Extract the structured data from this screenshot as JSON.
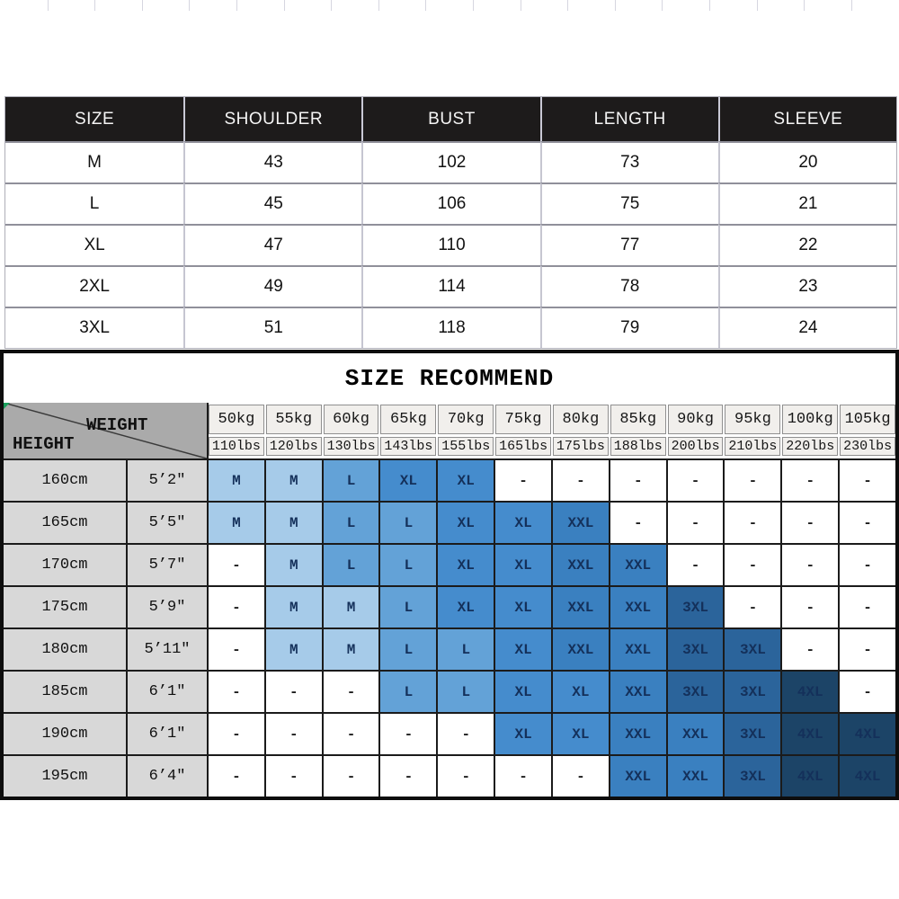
{
  "size_table": {
    "headers": [
      "SIZE",
      "SHOULDER",
      "BUST",
      "LENGTH",
      "SLEEVE"
    ],
    "rows": [
      [
        "M",
        "43",
        "102",
        "73",
        "20"
      ],
      [
        "L",
        "45",
        "106",
        "75",
        "21"
      ],
      [
        "XL",
        "47",
        "110",
        "77",
        "22"
      ],
      [
        "2XL",
        "49",
        "114",
        "78",
        "23"
      ],
      [
        "3XL",
        "51",
        "118",
        "79",
        "24"
      ]
    ]
  },
  "recommend": {
    "title": "SIZE RECOMMEND",
    "corner": {
      "weight_label": "WEIGHT",
      "height_label": "HEIGHT"
    },
    "weights": [
      {
        "kg": "50kg",
        "lbs": "110lbs"
      },
      {
        "kg": "55kg",
        "lbs": "120lbs"
      },
      {
        "kg": "60kg",
        "lbs": "130lbs"
      },
      {
        "kg": "65kg",
        "lbs": "143lbs"
      },
      {
        "kg": "70kg",
        "lbs": "155lbs"
      },
      {
        "kg": "75kg",
        "lbs": "165lbs"
      },
      {
        "kg": "80kg",
        "lbs": "175lbs"
      },
      {
        "kg": "85kg",
        "lbs": "188lbs"
      },
      {
        "kg": "90kg",
        "lbs": "200lbs"
      },
      {
        "kg": "95kg",
        "lbs": "210lbs"
      },
      {
        "kg": "100kg",
        "lbs": "220lbs"
      },
      {
        "kg": "105kg",
        "lbs": "230lbs"
      }
    ],
    "rows": [
      {
        "cm": "160cm",
        "ft": "5’2″",
        "cells": [
          "M",
          "M",
          "L",
          "XL",
          "XL",
          "-",
          "-",
          "-",
          "-",
          "-",
          "-",
          "-"
        ]
      },
      {
        "cm": "165cm",
        "ft": "5’5″",
        "cells": [
          "M",
          "M",
          "L",
          "L",
          "XL",
          "XL",
          "XXL",
          "-",
          "-",
          "-",
          "-",
          "-"
        ]
      },
      {
        "cm": "170cm",
        "ft": "5’7″",
        "cells": [
          "-",
          "M",
          "L",
          "L",
          "XL",
          "XL",
          "XXL",
          "XXL",
          "-",
          "-",
          "-",
          "-"
        ]
      },
      {
        "cm": "175cm",
        "ft": "5’9″",
        "cells": [
          "-",
          "M",
          "M",
          "L",
          "XL",
          "XL",
          "XXL",
          "XXL",
          "3XL",
          "-",
          "-",
          "-"
        ]
      },
      {
        "cm": "180cm",
        "ft": "5’11″",
        "cells": [
          "-",
          "M",
          "M",
          "L",
          "L",
          "XL",
          "XXL",
          "XXL",
          "3XL",
          "3XL",
          "-",
          "-"
        ]
      },
      {
        "cm": "185cm",
        "ft": "6’1″",
        "cells": [
          "-",
          "-",
          "-",
          "L",
          "L",
          "XL",
          "XL",
          "XXL",
          "3XL",
          "3XL",
          "4XL",
          "-"
        ]
      },
      {
        "cm": "190cm",
        "ft": "6’1″",
        "cells": [
          "-",
          "-",
          "-",
          "-",
          "-",
          "XL",
          "XL",
          "XXL",
          "XXL",
          "3XL",
          "4XL",
          "4XL"
        ]
      },
      {
        "cm": "195cm",
        "ft": "6’4″",
        "cells": [
          "-",
          "-",
          "-",
          "-",
          "-",
          "-",
          "-",
          "XXL",
          "XXL",
          "3XL",
          "4XL",
          "4XL"
        ]
      }
    ],
    "size_colors": {
      "M": "#a6cbe9",
      "L": "#63a2d7",
      "XL": "#458ccd",
      "XXL": "#3a80c0",
      "3XL": "#2b649b",
      "4XL": "#1c4467"
    }
  },
  "palette": {
    "table_header_bg": "#1d1b1b",
    "corner_bg": "#aaaaaa",
    "height_cell_bg": "#d8d8d8",
    "weight_header_bg": "#f1efec",
    "grid_line": "#1b1b1b",
    "green_artifact": "#1eb573"
  }
}
